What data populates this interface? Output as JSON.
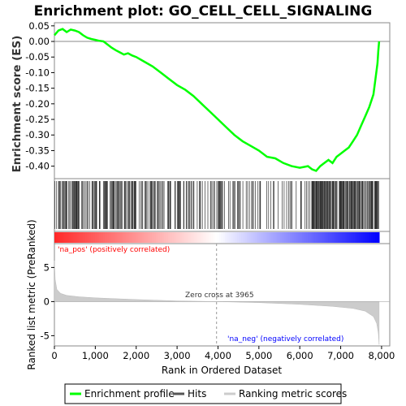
{
  "chart_data": {
    "type": "line",
    "title": "Enrichment plot: GO_CELL_CELL_SIGNALING",
    "top_panel": {
      "ylabel": "Enrichment score (ES)",
      "ylim": [
        -0.44,
        0.06
      ],
      "yticks": [
        0.05,
        0.0,
        -0.05,
        -0.1,
        -0.15,
        -0.2,
        -0.25,
        -0.3,
        -0.35,
        -0.4
      ],
      "ytick_labels": [
        "0.05",
        "0.00",
        "-0.05",
        "-0.10",
        "-0.15",
        "-0.20",
        "-0.25",
        "-0.30",
        "-0.35",
        "-0.40"
      ],
      "series": [
        {
          "name": "Enrichment profile",
          "color": "#00ff00",
          "x": [
            0,
            100,
            200,
            300,
            400,
            500,
            600,
            700,
            800,
            900,
            1000,
            1100,
            1200,
            1300,
            1400,
            1500,
            1600,
            1700,
            1800,
            1900,
            2000,
            2200,
            2400,
            2600,
            2800,
            3000,
            3200,
            3400,
            3600,
            3800,
            4000,
            4200,
            4400,
            4600,
            4800,
            5000,
            5200,
            5400,
            5600,
            5800,
            6000,
            6200,
            6300,
            6400,
            6500,
            6600,
            6700,
            6800,
            6900,
            7000,
            7100,
            7200,
            7300,
            7400,
            7500,
            7600,
            7700,
            7800,
            7850,
            7900,
            7920,
            7940
          ],
          "y": [
            0.02,
            0.035,
            0.04,
            0.03,
            0.038,
            0.035,
            0.03,
            0.02,
            0.012,
            0.008,
            0.005,
            0.002,
            0.0,
            -0.01,
            -0.02,
            -0.028,
            -0.035,
            -0.042,
            -0.038,
            -0.045,
            -0.05,
            -0.065,
            -0.08,
            -0.1,
            -0.12,
            -0.14,
            -0.155,
            -0.175,
            -0.2,
            -0.225,
            -0.25,
            -0.275,
            -0.3,
            -0.32,
            -0.335,
            -0.35,
            -0.37,
            -0.375,
            -0.39,
            -0.4,
            -0.405,
            -0.4,
            -0.41,
            -0.415,
            -0.4,
            -0.39,
            -0.38,
            -0.39,
            -0.37,
            -0.36,
            -0.35,
            -0.34,
            -0.32,
            -0.3,
            -0.27,
            -0.24,
            -0.21,
            -0.17,
            -0.12,
            -0.07,
            -0.03,
            0.0
          ]
        }
      ]
    },
    "bottom_panel": {
      "ylabel": "Ranked list metric (PreRanked)",
      "ylim": [
        -6.5,
        8.5
      ],
      "yticks": [
        5,
        0,
        -5
      ],
      "ytick_labels": [
        "5",
        "0",
        "-5"
      ],
      "x": [
        0,
        20,
        60,
        150,
        300,
        600,
        1000,
        2000,
        3000,
        3965,
        5000,
        6000,
        6800,
        7300,
        7600,
        7800,
        7880,
        7920,
        7940
      ],
      "y": [
        6.0,
        3.2,
        1.8,
        1.2,
        0.9,
        0.7,
        0.55,
        0.3,
        0.1,
        0.0,
        -0.15,
        -0.4,
        -0.7,
        -1.0,
        -1.4,
        -2.2,
        -3.2,
        -4.6,
        -6.3
      ]
    },
    "xlabel": "Rank in Ordered Dataset",
    "xlim": [
      0,
      8200
    ],
    "xticks": [
      0,
      1000,
      2000,
      3000,
      4000,
      5000,
      6000,
      7000,
      8000
    ],
    "xtick_labels": [
      "0",
      "1,000",
      "2,000",
      "3,000",
      "4,000",
      "5,000",
      "6,000",
      "7,000",
      "8,000"
    ],
    "zero_cross": 3965,
    "annotations": {
      "pos_label": "'na_pos' (positively correlated)",
      "neg_label": "'na_neg' (negatively correlated)",
      "zero_label": "Zero cross at 3965",
      "pos_color": "#ff0000",
      "neg_color": "#0000ff"
    },
    "legend": {
      "placement": "bottom",
      "entries": [
        {
          "label": "Enrichment profile",
          "color": "#00ff00"
        },
        {
          "label": "Hits",
          "color": "#555555"
        },
        {
          "label": "Ranking metric scores",
          "color": "#cccccc"
        }
      ]
    }
  }
}
